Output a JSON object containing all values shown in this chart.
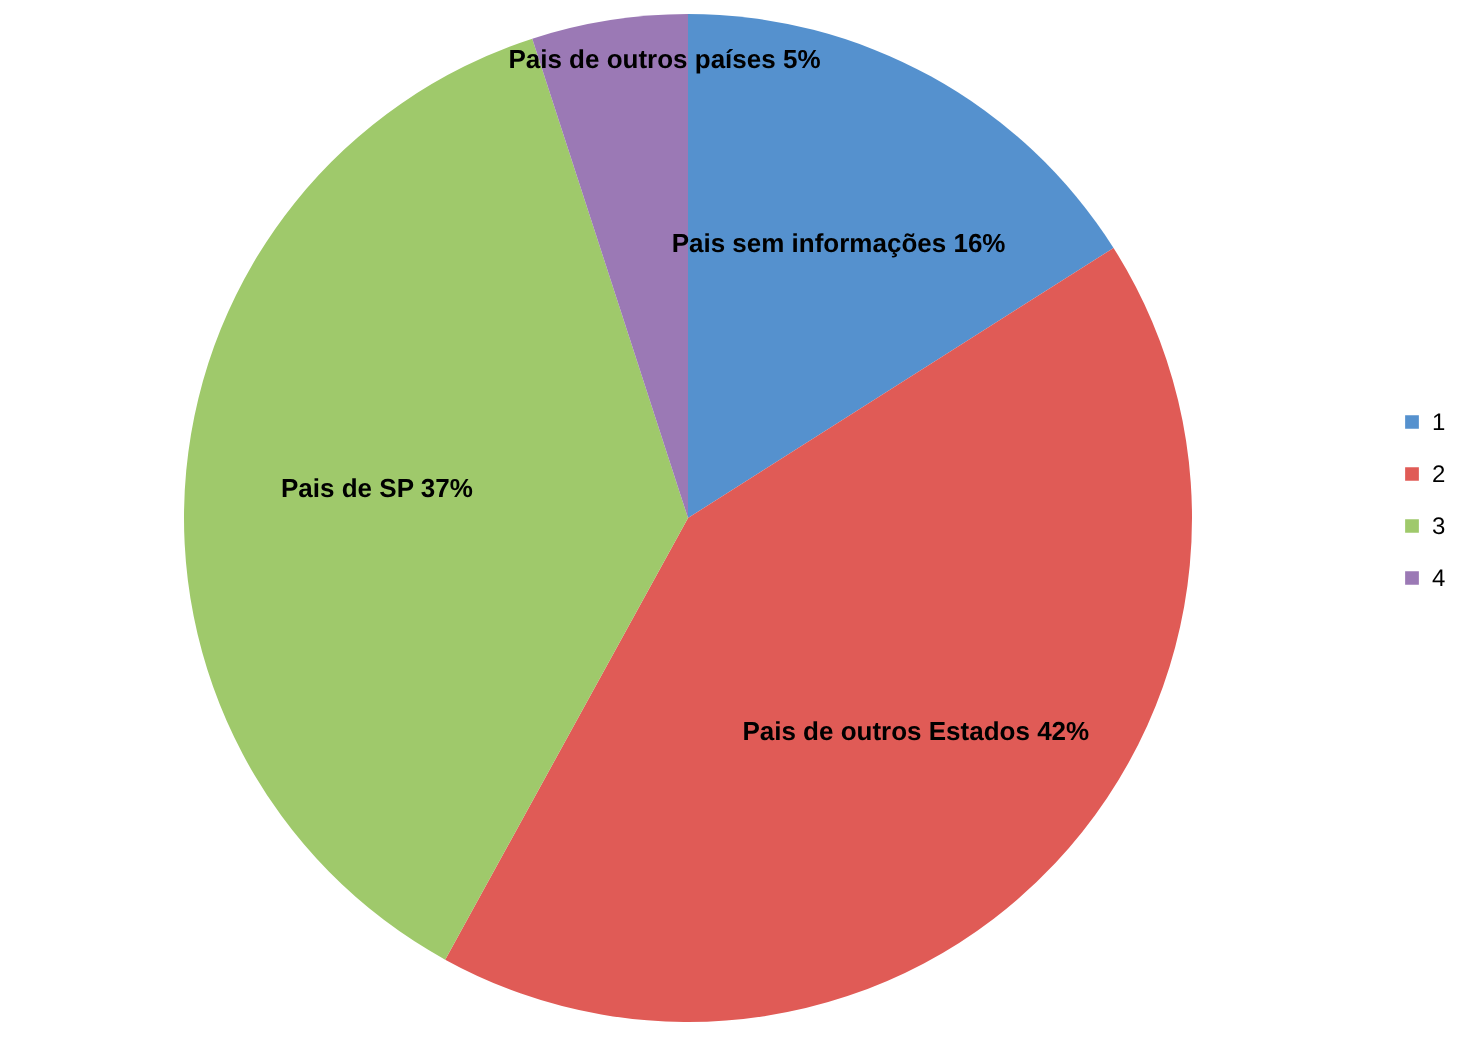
{
  "chart_data": {
    "type": "pie",
    "categories": [
      "1",
      "2",
      "3",
      "4"
    ],
    "values": [
      16,
      42,
      37,
      5
    ],
    "colors": [
      "#5591ce",
      "#e05b56",
      "#9fc96b",
      "#9b79b5"
    ],
    "value_labels": [
      "Pais sem informações 16%",
      "Pais de outros Estados 42%",
      "Pais de SP 37%",
      "Pais de outros países 5%"
    ],
    "legend": "right"
  }
}
